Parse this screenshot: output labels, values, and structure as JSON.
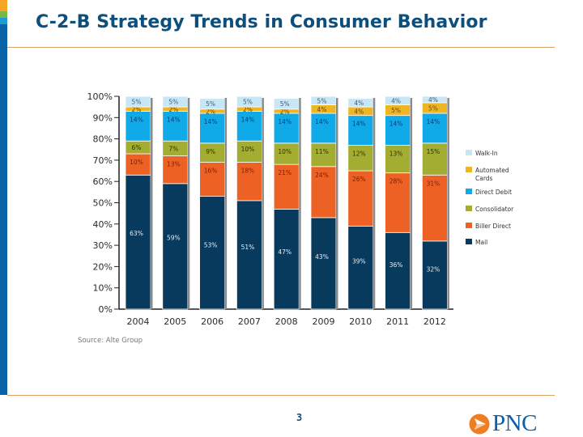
{
  "slide": {
    "title": "C-2-B Strategy Trends in Consumer Behavior",
    "page_number": "3",
    "logo_text": "PNC"
  },
  "colors": {
    "title": "#0d4f7c",
    "rule": "#d9a066",
    "logo_orange": "#ef7d22",
    "logo_blue": "#0d5ea8"
  },
  "chart_data": {
    "type": "bar",
    "stacked": true,
    "title": "",
    "xlabel": "",
    "ylabel": "",
    "ylim": [
      0,
      100
    ],
    "yticks": [
      "0%",
      "10%",
      "20%",
      "30%",
      "40%",
      "50%",
      "60%",
      "70%",
      "80%",
      "90%",
      "100%"
    ],
    "categories": [
      "2004",
      "2005",
      "2006",
      "2007",
      "2008",
      "2009",
      "2010",
      "2011",
      "2012"
    ],
    "series": [
      {
        "name": "Mail",
        "color": "#083a5e",
        "label_color": "#e6eef5",
        "values": [
          63,
          59,
          53,
          51,
          47,
          43,
          39,
          36,
          32
        ]
      },
      {
        "name": "Biller Direct",
        "color": "#ee6124",
        "label_color": "#7a1e05",
        "values": [
          10,
          13,
          16,
          18,
          21,
          24,
          26,
          28,
          31
        ]
      },
      {
        "name": "Consolidator",
        "color": "#a3ad32",
        "label_color": "#2e3306",
        "values": [
          6,
          7,
          9,
          10,
          10,
          11,
          12,
          13,
          15
        ]
      },
      {
        "name": "Direct Debit",
        "color": "#10aae8",
        "label_color": "#0b3d74",
        "values": [
          14,
          14,
          14,
          14,
          14,
          14,
          14,
          14,
          14
        ]
      },
      {
        "name": "Automated Cards",
        "color": "#f0b523",
        "label_color": "#6a4a00",
        "values": [
          2,
          2,
          2,
          2,
          2,
          4,
          4,
          5,
          5
        ]
      },
      {
        "name": "Walk-In",
        "color": "#c8e7f6",
        "label_color": "#3b5b78",
        "values": [
          5,
          5,
          5,
          5,
          5,
          5,
          4,
          4,
          4
        ]
      }
    ],
    "legend": {
      "placement": "right",
      "order": [
        "Walk-In",
        "Automated Cards",
        "Direct Debit",
        "Consolidator",
        "Biller Direct",
        "Mail"
      ]
    },
    "source": "Source: Alte Group",
    "grid": false
  }
}
